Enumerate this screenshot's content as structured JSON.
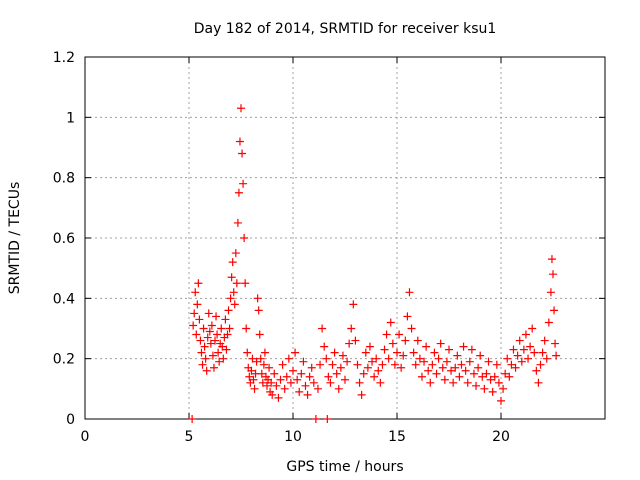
{
  "chart_data": {
    "type": "scatter",
    "title": "Day 182 of 2014, SRMTID for receiver ksu1",
    "xlabel": "GPS time / hours",
    "ylabel": "SRMTID / TECUs",
    "xlim": [
      0,
      25
    ],
    "ylim": [
      0,
      1.2
    ],
    "xticks": [
      0,
      5,
      10,
      15,
      20
    ],
    "xtick_labels": [
      "0",
      "5",
      "10",
      "15",
      "20"
    ],
    "yticks": [
      0,
      0.2,
      0.4,
      0.6,
      0.8,
      1.0,
      1.2
    ],
    "ytick_labels": [
      "0",
      "0.2",
      "0.4",
      "0.6",
      "0.8",
      "1",
      "1.2"
    ],
    "grid": true,
    "marker": "plus",
    "color": "#ff0000",
    "series": [
      {
        "name": "SRMTID",
        "points": [
          [
            5.15,
            0.0
          ],
          [
            5.2,
            0.31
          ],
          [
            5.25,
            0.35
          ],
          [
            5.3,
            0.42
          ],
          [
            5.35,
            0.28
          ],
          [
            5.4,
            0.38
          ],
          [
            5.45,
            0.45
          ],
          [
            5.5,
            0.33
          ],
          [
            5.55,
            0.26
          ],
          [
            5.6,
            0.22
          ],
          [
            5.65,
            0.18
          ],
          [
            5.7,
            0.3
          ],
          [
            5.75,
            0.24
          ],
          [
            5.8,
            0.2
          ],
          [
            5.85,
            0.16
          ],
          [
            5.9,
            0.27
          ],
          [
            5.95,
            0.35
          ],
          [
            6.0,
            0.29
          ],
          [
            6.05,
            0.25
          ],
          [
            6.1,
            0.31
          ],
          [
            6.15,
            0.21
          ],
          [
            6.2,
            0.17
          ],
          [
            6.25,
            0.26
          ],
          [
            6.3,
            0.34
          ],
          [
            6.35,
            0.28
          ],
          [
            6.4,
            0.22
          ],
          [
            6.45,
            0.19
          ],
          [
            6.5,
            0.25
          ],
          [
            6.55,
            0.3
          ],
          [
            6.6,
            0.24
          ],
          [
            6.65,
            0.2
          ],
          [
            6.7,
            0.27
          ],
          [
            6.75,
            0.33
          ],
          [
            6.8,
            0.23
          ],
          [
            6.85,
            0.28
          ],
          [
            6.9,
            0.36
          ],
          [
            6.95,
            0.3
          ],
          [
            7.0,
            0.4
          ],
          [
            7.05,
            0.47
          ],
          [
            7.1,
            0.52
          ],
          [
            7.15,
            0.42
          ],
          [
            7.2,
            0.38
          ],
          [
            7.25,
            0.55
          ],
          [
            7.3,
            0.45
          ],
          [
            7.35,
            0.65
          ],
          [
            7.4,
            0.75
          ],
          [
            7.45,
            0.92
          ],
          [
            7.5,
            1.03
          ],
          [
            7.55,
            0.88
          ],
          [
            7.6,
            0.78
          ],
          [
            7.65,
            0.6
          ],
          [
            7.7,
            0.45
          ],
          [
            7.75,
            0.3
          ],
          [
            7.8,
            0.22
          ],
          [
            7.85,
            0.17
          ],
          [
            7.9,
            0.14
          ],
          [
            7.95,
            0.12
          ],
          [
            8.0,
            0.16
          ],
          [
            8.05,
            0.2
          ],
          [
            8.1,
            0.13
          ],
          [
            8.15,
            0.1
          ],
          [
            8.2,
            0.15
          ],
          [
            8.25,
            0.19
          ],
          [
            8.3,
            0.4
          ],
          [
            8.35,
            0.36
          ],
          [
            8.4,
            0.28
          ],
          [
            8.45,
            0.2
          ],
          [
            8.5,
            0.15
          ],
          [
            8.55,
            0.12
          ],
          [
            8.6,
            0.18
          ],
          [
            8.65,
            0.22
          ],
          [
            8.7,
            0.14
          ],
          [
            8.75,
            0.11
          ],
          [
            8.8,
            0.13
          ],
          [
            8.85,
            0.17
          ],
          [
            8.9,
            0.09
          ],
          [
            8.95,
            0.12
          ],
          [
            9.0,
            0.08
          ],
          [
            9.1,
            0.15
          ],
          [
            9.2,
            0.11
          ],
          [
            9.3,
            0.07
          ],
          [
            9.4,
            0.13
          ],
          [
            9.5,
            0.18
          ],
          [
            9.6,
            0.1
          ],
          [
            9.7,
            0.14
          ],
          [
            9.8,
            0.2
          ],
          [
            9.9,
            0.12
          ],
          [
            10.0,
            0.16
          ],
          [
            10.1,
            0.22
          ],
          [
            10.2,
            0.13
          ],
          [
            10.3,
            0.09
          ],
          [
            10.4,
            0.15
          ],
          [
            10.5,
            0.19
          ],
          [
            10.6,
            0.11
          ],
          [
            10.7,
            0.08
          ],
          [
            10.8,
            0.14
          ],
          [
            10.9,
            0.17
          ],
          [
            11.0,
            0.12
          ],
          [
            11.1,
            0.0
          ],
          [
            11.2,
            0.1
          ],
          [
            11.3,
            0.18
          ],
          [
            11.4,
            0.3
          ],
          [
            11.5,
            0.24
          ],
          [
            11.6,
            0.2
          ],
          [
            11.65,
            0.0
          ],
          [
            11.7,
            0.14
          ],
          [
            11.8,
            0.12
          ],
          [
            11.9,
            0.18
          ],
          [
            12.0,
            0.22
          ],
          [
            12.1,
            0.15
          ],
          [
            12.2,
            0.1
          ],
          [
            12.3,
            0.17
          ],
          [
            12.4,
            0.21
          ],
          [
            12.5,
            0.13
          ],
          [
            12.6,
            0.19
          ],
          [
            12.7,
            0.25
          ],
          [
            12.8,
            0.3
          ],
          [
            12.9,
            0.38
          ],
          [
            13.0,
            0.26
          ],
          [
            13.1,
            0.18
          ],
          [
            13.2,
            0.12
          ],
          [
            13.3,
            0.08
          ],
          [
            13.4,
            0.15
          ],
          [
            13.5,
            0.22
          ],
          [
            13.6,
            0.17
          ],
          [
            13.7,
            0.24
          ],
          [
            13.8,
            0.19
          ],
          [
            13.9,
            0.14
          ],
          [
            14.0,
            0.2
          ],
          [
            14.1,
            0.16
          ],
          [
            14.2,
            0.12
          ],
          [
            14.3,
            0.18
          ],
          [
            14.4,
            0.23
          ],
          [
            14.5,
            0.28
          ],
          [
            14.6,
            0.2
          ],
          [
            14.7,
            0.32
          ],
          [
            14.8,
            0.25
          ],
          [
            14.9,
            0.18
          ],
          [
            15.0,
            0.22
          ],
          [
            15.1,
            0.28
          ],
          [
            15.2,
            0.17
          ],
          [
            15.3,
            0.21
          ],
          [
            15.4,
            0.26
          ],
          [
            15.5,
            0.34
          ],
          [
            15.6,
            0.42
          ],
          [
            15.7,
            0.3
          ],
          [
            15.8,
            0.22
          ],
          [
            15.9,
            0.18
          ],
          [
            16.0,
            0.26
          ],
          [
            16.1,
            0.2
          ],
          [
            16.2,
            0.14
          ],
          [
            16.3,
            0.19
          ],
          [
            16.4,
            0.24
          ],
          [
            16.5,
            0.16
          ],
          [
            16.6,
            0.12
          ],
          [
            16.7,
            0.18
          ],
          [
            16.8,
            0.22
          ],
          [
            16.9,
            0.15
          ],
          [
            17.0,
            0.2
          ],
          [
            17.1,
            0.25
          ],
          [
            17.2,
            0.17
          ],
          [
            17.3,
            0.13
          ],
          [
            17.4,
            0.19
          ],
          [
            17.5,
            0.23
          ],
          [
            17.6,
            0.16
          ],
          [
            17.7,
            0.12
          ],
          [
            17.8,
            0.17
          ],
          [
            17.9,
            0.21
          ],
          [
            18.0,
            0.14
          ],
          [
            18.1,
            0.18
          ],
          [
            18.2,
            0.24
          ],
          [
            18.3,
            0.16
          ],
          [
            18.4,
            0.12
          ],
          [
            18.5,
            0.19
          ],
          [
            18.6,
            0.23
          ],
          [
            18.7,
            0.15
          ],
          [
            18.8,
            0.11
          ],
          [
            18.9,
            0.17
          ],
          [
            19.0,
            0.21
          ],
          [
            19.1,
            0.14
          ],
          [
            19.2,
            0.1
          ],
          [
            19.3,
            0.15
          ],
          [
            19.4,
            0.19
          ],
          [
            19.5,
            0.13
          ],
          [
            19.6,
            0.09
          ],
          [
            19.7,
            0.14
          ],
          [
            19.8,
            0.18
          ],
          [
            19.9,
            0.12
          ],
          [
            20.0,
            0.06
          ],
          [
            20.1,
            0.1
          ],
          [
            20.2,
            0.15
          ],
          [
            20.3,
            0.2
          ],
          [
            20.4,
            0.14
          ],
          [
            20.5,
            0.18
          ],
          [
            20.6,
            0.23
          ],
          [
            20.7,
            0.17
          ],
          [
            20.8,
            0.21
          ],
          [
            20.9,
            0.26
          ],
          [
            21.0,
            0.19
          ],
          [
            21.1,
            0.23
          ],
          [
            21.2,
            0.28
          ],
          [
            21.3,
            0.2
          ],
          [
            21.4,
            0.24
          ],
          [
            21.5,
            0.3
          ],
          [
            21.6,
            0.22
          ],
          [
            21.7,
            0.16
          ],
          [
            21.8,
            0.12
          ],
          [
            21.9,
            0.18
          ],
          [
            22.0,
            0.22
          ],
          [
            22.1,
            0.26
          ],
          [
            22.2,
            0.2
          ],
          [
            22.3,
            0.32
          ],
          [
            22.4,
            0.42
          ],
          [
            22.45,
            0.53
          ],
          [
            22.5,
            0.48
          ],
          [
            22.55,
            0.36
          ],
          [
            22.6,
            0.25
          ],
          [
            22.65,
            0.21
          ]
        ]
      }
    ]
  }
}
